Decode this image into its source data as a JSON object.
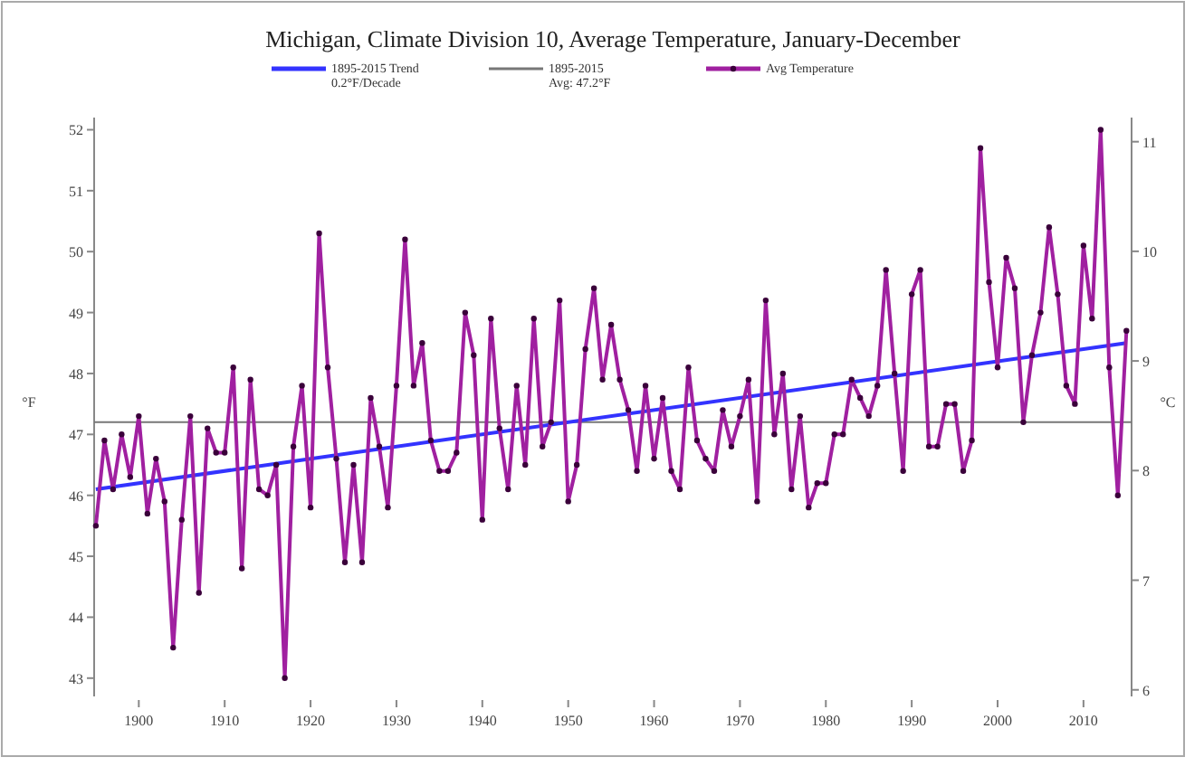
{
  "chart_data": {
    "type": "line",
    "title": "Michigan, Climate Division 10, Average Temperature, January-December",
    "ylabel": "°F",
    "y2label": "°C",
    "x": [
      1895,
      1896,
      1897,
      1898,
      1899,
      1900,
      1901,
      1902,
      1903,
      1904,
      1905,
      1906,
      1907,
      1908,
      1909,
      1910,
      1911,
      1912,
      1913,
      1914,
      1915,
      1916,
      1917,
      1918,
      1919,
      1920,
      1921,
      1922,
      1923,
      1924,
      1925,
      1926,
      1927,
      1928,
      1929,
      1930,
      1931,
      1932,
      1933,
      1934,
      1935,
      1936,
      1937,
      1938,
      1939,
      1940,
      1941,
      1942,
      1943,
      1944,
      1945,
      1946,
      1947,
      1948,
      1949,
      1950,
      1951,
      1952,
      1953,
      1954,
      1955,
      1956,
      1957,
      1958,
      1959,
      1960,
      1961,
      1962,
      1963,
      1964,
      1965,
      1966,
      1967,
      1968,
      1969,
      1970,
      1971,
      1972,
      1973,
      1974,
      1975,
      1976,
      1977,
      1978,
      1979,
      1980,
      1981,
      1982,
      1983,
      1984,
      1985,
      1986,
      1987,
      1988,
      1989,
      1990,
      1991,
      1992,
      1993,
      1994,
      1995,
      1996,
      1997,
      1998,
      1999,
      2000,
      2001,
      2002,
      2003,
      2004,
      2005,
      2006,
      2007,
      2008,
      2009,
      2010,
      2011,
      2012,
      2013,
      2014,
      2015
    ],
    "series": [
      {
        "name": "1895-2015 Trend\n0.2°F/Decade",
        "color": "#3333ff",
        "marker": "none",
        "x": [
          1895,
          2015
        ],
        "values": [
          46.1,
          48.5
        ]
      },
      {
        "name": "Avg Temperature",
        "color": "#a020a0",
        "marker": "circle",
        "values": [
          45.5,
          46.9,
          46.1,
          47.0,
          46.3,
          47.3,
          45.7,
          46.6,
          45.9,
          43.5,
          45.6,
          47.3,
          44.4,
          47.1,
          46.7,
          46.7,
          48.1,
          44.8,
          47.9,
          46.1,
          46.0,
          46.5,
          43.0,
          46.8,
          47.8,
          45.8,
          50.3,
          48.1,
          46.6,
          44.9,
          46.5,
          44.9,
          47.6,
          46.8,
          45.8,
          47.8,
          50.2,
          47.8,
          48.5,
          46.9,
          46.4,
          46.4,
          46.7,
          49.0,
          48.3,
          45.6,
          48.9,
          47.1,
          46.1,
          47.8,
          46.5,
          48.9,
          46.8,
          47.2,
          49.2,
          45.9,
          46.5,
          48.4,
          49.4,
          47.9,
          48.8,
          47.9,
          47.4,
          46.4,
          47.8,
          46.6,
          47.6,
          46.4,
          46.1,
          48.1,
          46.9,
          46.6,
          46.4,
          47.4,
          46.8,
          47.3,
          47.9,
          45.9,
          49.2,
          47.0,
          48.0,
          46.1,
          47.3,
          45.8,
          46.2,
          46.2,
          47.0,
          47.0,
          47.9,
          47.6,
          47.3,
          47.8,
          49.7,
          48.0,
          46.4,
          49.3,
          49.7,
          46.8,
          46.8,
          47.5,
          47.5,
          46.4,
          46.9,
          51.7,
          49.5,
          48.1,
          49.9,
          49.4,
          47.2,
          48.3,
          49.0,
          50.4,
          49.3,
          47.8,
          47.5,
          50.1,
          48.9,
          52.0,
          48.1,
          46.0,
          48.7
        ]
      }
    ],
    "ref_lines": [
      {
        "axis": "y",
        "value": 47.2,
        "label": "1895-2015\nAvg: 47.2°F",
        "color": "#777777"
      }
    ],
    "xlim": [
      1894.8,
      2015.6
    ],
    "xticks": [
      1900,
      1910,
      1920,
      1930,
      1940,
      1950,
      1960,
      1970,
      1980,
      1990,
      2000,
      2010
    ],
    "ylim": [
      42.7,
      52.2
    ],
    "yticks": [
      43,
      44,
      45,
      46,
      47,
      48,
      49,
      50,
      51,
      52
    ],
    "y2lim": [
      5.94,
      11.22
    ],
    "y2ticks": [
      6,
      7,
      8,
      9,
      10,
      11
    ],
    "grid": false,
    "legend": "top"
  }
}
